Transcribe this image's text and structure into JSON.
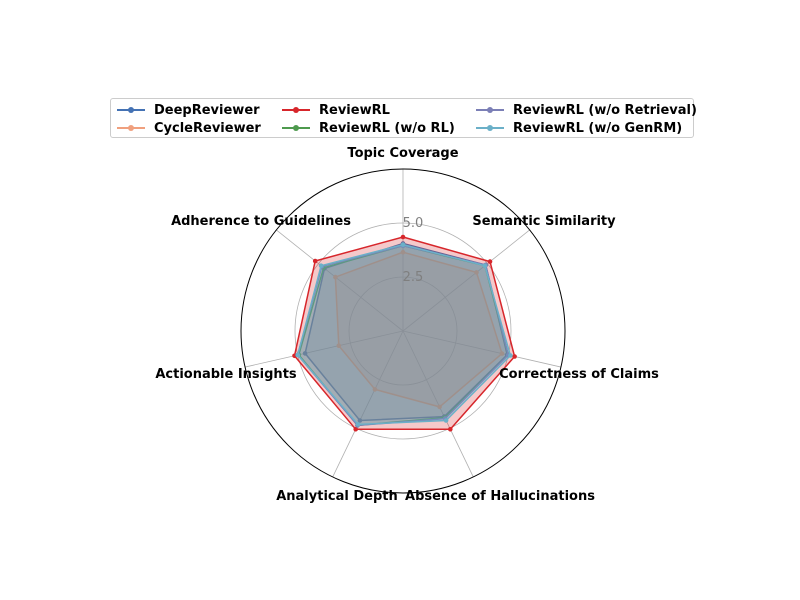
{
  "chart_data": {
    "type": "radar",
    "title": "",
    "axes": [
      "Topic Coverage",
      "Semantic Similarity",
      "Correctness of Claims",
      "Absence of Hallucinations",
      "Analytical Depth",
      "Actionable Insights",
      "Adherence to Guidelines"
    ],
    "r_range": [
      0,
      7.5
    ],
    "r_ticks": [
      2.5,
      5.0
    ],
    "r_tick_labels": [
      "2.5",
      "5.0"
    ],
    "grid": true,
    "legend_position": "top",
    "series": [
      {
        "name": "DeepReviewer",
        "color": "#4472b4",
        "values": [
          4.05,
          4.9,
          4.95,
          4.4,
          4.6,
          4.65,
          4.65
        ]
      },
      {
        "name": "CycleReviewer",
        "color": "#f0a07e",
        "values": [
          3.65,
          4.35,
          4.7,
          3.9,
          3.0,
          3.05,
          4.0
        ]
      },
      {
        "name": "ReviewRL",
        "color": "#d7262b",
        "values": [
          4.35,
          5.15,
          5.3,
          5.05,
          5.05,
          5.15,
          5.2
        ]
      },
      {
        "name": "ReviewRL (w/o RL)",
        "color": "#4e9a4e",
        "values": [
          3.95,
          4.85,
          5.0,
          4.45,
          4.85,
          4.95,
          4.7
        ]
      },
      {
        "name": "ReviewRL (w/o Retrieval)",
        "color": "#7b7fb6",
        "values": [
          3.95,
          4.9,
          5.0,
          4.5,
          4.85,
          5.0,
          4.8
        ]
      },
      {
        "name": "ReviewRL (w/o GenRM)",
        "color": "#6bb0c8",
        "values": [
          4.0,
          4.85,
          5.1,
          4.6,
          4.8,
          5.0,
          4.85
        ]
      }
    ]
  }
}
